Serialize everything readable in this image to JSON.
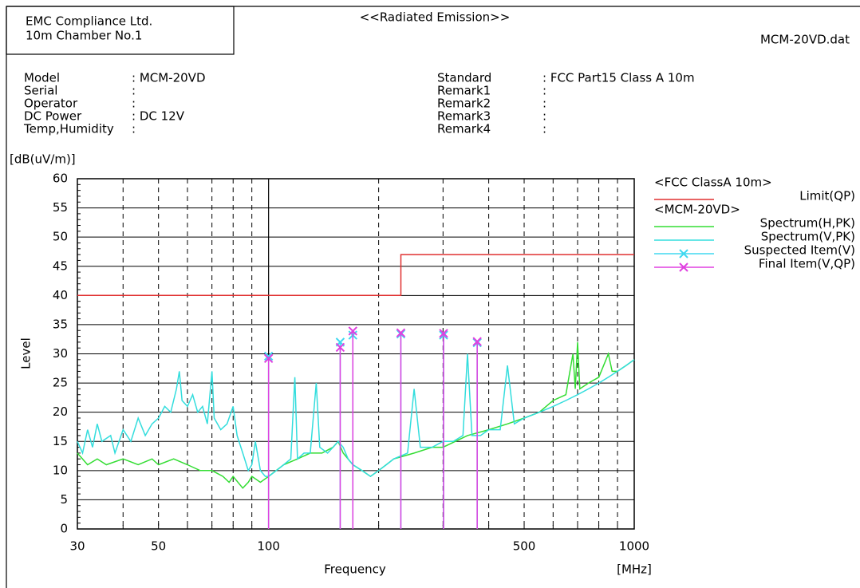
{
  "header": {
    "company": "EMC Compliance Ltd.",
    "chamber": "10m Chamber No.1",
    "title": "<<Radiated Emission>>",
    "file": "MCM-20VD.dat",
    "left_fields": [
      {
        "label": "Model",
        "value": ": MCM-20VD"
      },
      {
        "label": "Serial",
        "value": ":"
      },
      {
        "label": "Operator",
        "value": ":"
      },
      {
        "label": "DC Power",
        "value": ": DC 12V"
      },
      {
        "label": "Temp,Humidity",
        "value": ":"
      }
    ],
    "right_fields": [
      {
        "label": "Standard",
        "value": ": FCC Part15 Class A 10m"
      },
      {
        "label": "Remark1",
        "value": ":"
      },
      {
        "label": "Remark2",
        "value": ":"
      },
      {
        "label": "Remark3",
        "value": ":"
      },
      {
        "label": "Remark4",
        "value": ":"
      }
    ]
  },
  "chart_data": {
    "type": "line",
    "x_label": "Frequency",
    "x_unit": "[MHz]",
    "y_label": "Level",
    "y_unit": "[dB(uV/m)]",
    "x_log": true,
    "grid": true,
    "xlim": [
      30,
      1000
    ],
    "xticks": [
      30,
      50,
      100,
      500,
      1000
    ],
    "ylim": [
      0,
      60
    ],
    "yticks": [
      0,
      5,
      10,
      15,
      20,
      25,
      30,
      35,
      40,
      45,
      50,
      55,
      60
    ],
    "legend_position": "right",
    "legend_headers": [
      "<FCC ClassA 10m>",
      "<MCM-20VD>"
    ],
    "series": [
      {
        "name": "Limit(QP)",
        "group": 0,
        "kind": "line",
        "color": "#e03030",
        "x": [
          30,
          230,
          230,
          1000
        ],
        "values": [
          40,
          40,
          47,
          47
        ]
      },
      {
        "name": "Spectrum(H,PK)",
        "group": 1,
        "kind": "line",
        "color": "#33dd33",
        "x": [
          30,
          32,
          34,
          36,
          40,
          44,
          48,
          50,
          55,
          60,
          65,
          70,
          75,
          78,
          80,
          85,
          88,
          90,
          95,
          100,
          110,
          120,
          130,
          140,
          150,
          155,
          160,
          170,
          180,
          190,
          200,
          220,
          250,
          280,
          300,
          350,
          400,
          450,
          500,
          550,
          600,
          650,
          680,
          690,
          700,
          710,
          750,
          800,
          850,
          870,
          900,
          950,
          1000
        ],
        "values": [
          13,
          11,
          12,
          11,
          12,
          11,
          12,
          11,
          12,
          11,
          10,
          10,
          9,
          8,
          9,
          7,
          8,
          9,
          8,
          9,
          11,
          12,
          13,
          13,
          14,
          15,
          13,
          11,
          10,
          9,
          10,
          12,
          13,
          14,
          14,
          16,
          17,
          18,
          19,
          20,
          22,
          23,
          30,
          24,
          32,
          24,
          25,
          26,
          30,
          27,
          27,
          28,
          29
        ]
      },
      {
        "name": "Spectrum(V,PK)",
        "group": 1,
        "kind": "line",
        "color": "#33dddd",
        "x": [
          30,
          31,
          32,
          33,
          34,
          35,
          37,
          38,
          40,
          42,
          44,
          46,
          48,
          50,
          52,
          54,
          56,
          57,
          58,
          60,
          62,
          64,
          66,
          68,
          70,
          71,
          74,
          77,
          80,
          82,
          85,
          88,
          90,
          92,
          95,
          98,
          100,
          105,
          110,
          115,
          118,
          120,
          125,
          130,
          135,
          138,
          145,
          150,
          155,
          160,
          165,
          170,
          180,
          190,
          200,
          210,
          220,
          240,
          250,
          260,
          280,
          300,
          320,
          340,
          350,
          360,
          380,
          400,
          430,
          450,
          470,
          500,
          550,
          600,
          650,
          700,
          750,
          800,
          850,
          900,
          950,
          1000
        ],
        "values": [
          15,
          13,
          17,
          14,
          18,
          15,
          16,
          13,
          17,
          15,
          19,
          16,
          18,
          19,
          21,
          20,
          24,
          27,
          22,
          21,
          23,
          20,
          21,
          18,
          27,
          19,
          17,
          18,
          21,
          16,
          13,
          10,
          11,
          15,
          10,
          9,
          9,
          10,
          11,
          12,
          26,
          12,
          13,
          13,
          25,
          14,
          13,
          14,
          15,
          14,
          12,
          11,
          10,
          9,
          10,
          11,
          12,
          13,
          24,
          14,
          14,
          15,
          15,
          16,
          30,
          16,
          16,
          17,
          17,
          28,
          18,
          19,
          20,
          21,
          22,
          23,
          24,
          25,
          26,
          27,
          28,
          29
        ]
      },
      {
        "name": "Suspected Item(V)",
        "group": 1,
        "kind": "marker",
        "color": "#40d8f0",
        "x": [
          100,
          157,
          170,
          230,
          301,
          372
        ],
        "values": [
          29.6,
          32,
          33.2,
          33.4,
          33.2,
          31.9
        ]
      },
      {
        "name": "Final Item(V,QP)",
        "group": 1,
        "kind": "marker",
        "color": "#e040e0",
        "x": [
          100,
          157,
          170,
          230,
          301,
          372
        ],
        "values": [
          29.2,
          31.1,
          33.9,
          33.6,
          33.5,
          32.1
        ]
      }
    ]
  }
}
